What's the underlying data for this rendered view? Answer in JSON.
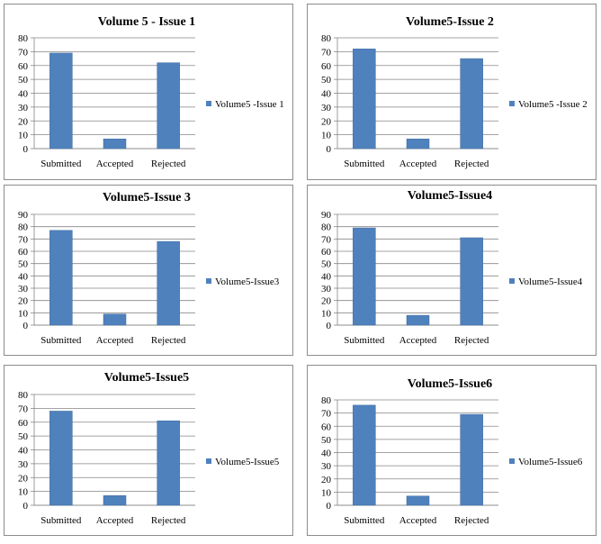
{
  "chart_data": [
    {
      "type": "bar",
      "title": "Volume 5 - Issue 1",
      "categories": [
        "Submitted",
        "Accepted",
        "Rejected"
      ],
      "series": [
        {
          "name": "Volume5 -Issue 1",
          "values": [
            69,
            7,
            62
          ]
        }
      ],
      "ylim": [
        0,
        80
      ],
      "yticks": [
        0,
        10,
        20,
        30,
        40,
        50,
        60,
        70,
        80
      ],
      "grid": true,
      "legend": "right",
      "color": "#4F81BD"
    },
    {
      "type": "bar",
      "title": "Volume5-Issue 2",
      "categories": [
        "Submitted",
        "Accepted",
        "Rejected"
      ],
      "series": [
        {
          "name": "Volume5 -Issue 2",
          "values": [
            72,
            7,
            65
          ]
        }
      ],
      "ylim": [
        0,
        80
      ],
      "yticks": [
        0,
        10,
        20,
        30,
        40,
        50,
        60,
        70,
        80
      ],
      "grid": true,
      "legend": "right",
      "color": "#4F81BD"
    },
    {
      "type": "bar",
      "title": "Volume5-Issue 3",
      "categories": [
        "Submitted",
        "Accepted",
        "Rejected"
      ],
      "series": [
        {
          "name": "Volume5-Issue3",
          "values": [
            77,
            9,
            68
          ]
        }
      ],
      "ylim": [
        0,
        90
      ],
      "yticks": [
        0,
        10,
        20,
        30,
        40,
        50,
        60,
        70,
        80,
        90
      ],
      "grid": true,
      "legend": "right",
      "color": "#4F81BD"
    },
    {
      "type": "bar",
      "title": "Volume5-Issue4",
      "categories": [
        "Submitted",
        "Accepted",
        "Rejected"
      ],
      "series": [
        {
          "name": "Volume5-Issue4",
          "values": [
            79,
            8,
            71
          ]
        }
      ],
      "ylim": [
        0,
        90
      ],
      "yticks": [
        0,
        10,
        20,
        30,
        40,
        50,
        60,
        70,
        80,
        90
      ],
      "grid": true,
      "legend": "right",
      "color": "#4F81BD"
    },
    {
      "type": "bar",
      "title": "Volume5-Issue5",
      "categories": [
        "Submitted",
        "Accepted",
        "Rejected"
      ],
      "series": [
        {
          "name": "Volume5-Issue5",
          "values": [
            68,
            7,
            61
          ]
        }
      ],
      "ylim": [
        0,
        80
      ],
      "yticks": [
        0,
        10,
        20,
        30,
        40,
        50,
        60,
        70,
        80
      ],
      "grid": true,
      "legend": "right",
      "color": "#4F81BD"
    },
    {
      "type": "bar",
      "title": "Volume5-Issue6",
      "categories": [
        "Submitted",
        "Accepted",
        "Rejected"
      ],
      "series": [
        {
          "name": "Volume5-Issue6",
          "values": [
            76,
            7,
            69
          ]
        }
      ],
      "ylim": [
        0,
        80
      ],
      "yticks": [
        0,
        10,
        20,
        30,
        40,
        50,
        60,
        70,
        80
      ],
      "grid": true,
      "legend": "right",
      "color": "#4F81BD"
    }
  ]
}
